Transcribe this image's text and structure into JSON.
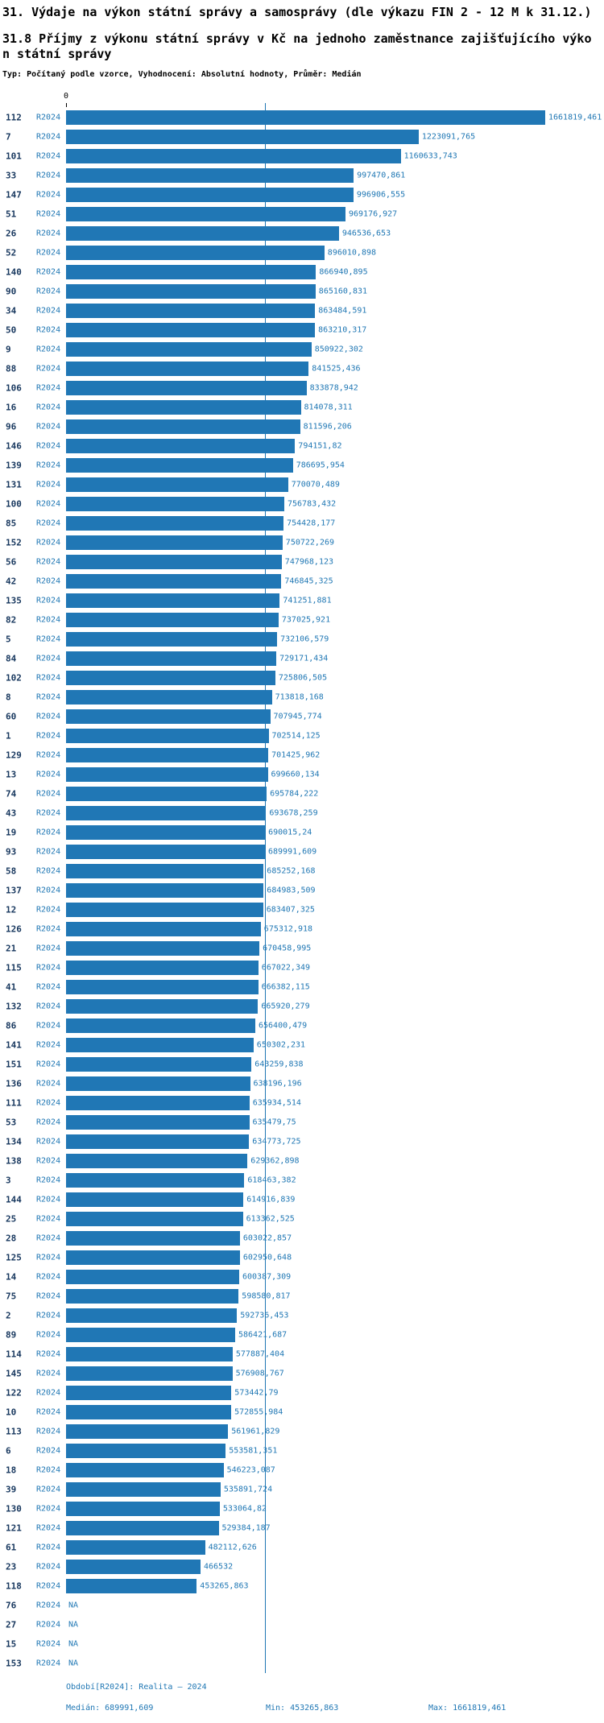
{
  "header": {
    "title1": "31. Výdaje na výkon státní správy a samosprávy (dle výkazu FIN 2 - 12 M k 31.12.)",
    "title2": "31.8 Příjmy z výkonu státní správy v Kč na jednoho zaměstnance zajišťujícího výkon státní správy",
    "subtitle": "Typ: Počítaný podle vzorce, Vyhodnocení: Absolutní hodnoty, Průměr: Medián"
  },
  "axis": {
    "zero_label": "0"
  },
  "colors": {
    "bar": "#2077b5",
    "value_text": "#1f77b4",
    "row_id_text": "#17375e",
    "median_line": "#1f77b4"
  },
  "footer": {
    "period": "Období[R2024]: Realita — 2024",
    "median": "Medián: 689991,609",
    "min": "Min: 453265,863",
    "max": "Max: 1661819,461"
  },
  "chart_data": {
    "type": "bar",
    "orientation": "horizontal",
    "series_name": "R2024",
    "xlim": [
      0,
      1661819.461
    ],
    "median": 689991.609,
    "min": 453265.863,
    "max_value": 1661819.461,
    "rows": [
      {
        "id": "112",
        "label": "1661819,461",
        "value": 1661819.461
      },
      {
        "id": "7",
        "label": "1223091,765",
        "value": 1223091.765
      },
      {
        "id": "101",
        "label": "1160633,743",
        "value": 1160633.743
      },
      {
        "id": "33",
        "label": "997470,861",
        "value": 997470.861
      },
      {
        "id": "147",
        "label": "996906,555",
        "value": 996906.555
      },
      {
        "id": "51",
        "label": "969176,927",
        "value": 969176.927
      },
      {
        "id": "26",
        "label": "946536,653",
        "value": 946536.653
      },
      {
        "id": "52",
        "label": "896010,898",
        "value": 896010.898
      },
      {
        "id": "140",
        "label": "866940,895",
        "value": 866940.895
      },
      {
        "id": "90",
        "label": "865160,831",
        "value": 865160.831
      },
      {
        "id": "34",
        "label": "863484,591",
        "value": 863484.591
      },
      {
        "id": "50",
        "label": "863210,317",
        "value": 863210.317
      },
      {
        "id": "9",
        "label": "850922,302",
        "value": 850922.302
      },
      {
        "id": "88",
        "label": "841525,436",
        "value": 841525.436
      },
      {
        "id": "106",
        "label": "833878,942",
        "value": 833878.942
      },
      {
        "id": "16",
        "label": "814078,311",
        "value": 814078.311
      },
      {
        "id": "96",
        "label": "811596,206",
        "value": 811596.206
      },
      {
        "id": "146",
        "label": "794151,82",
        "value": 794151.82
      },
      {
        "id": "139",
        "label": "786695,954",
        "value": 786695.954
      },
      {
        "id": "131",
        "label": "770070,489",
        "value": 770070.489
      },
      {
        "id": "100",
        "label": "756783,432",
        "value": 756783.432
      },
      {
        "id": "85",
        "label": "754428,177",
        "value": 754428.177
      },
      {
        "id": "152",
        "label": "750722,269",
        "value": 750722.269
      },
      {
        "id": "56",
        "label": "747968,123",
        "value": 747968.123
      },
      {
        "id": "42",
        "label": "746845,325",
        "value": 746845.325
      },
      {
        "id": "135",
        "label": "741251,881",
        "value": 741251.881
      },
      {
        "id": "82",
        "label": "737025,921",
        "value": 737025.921
      },
      {
        "id": "5",
        "label": "732106,579",
        "value": 732106.579
      },
      {
        "id": "84",
        "label": "729171,434",
        "value": 729171.434
      },
      {
        "id": "102",
        "label": "725806,505",
        "value": 725806.505
      },
      {
        "id": "8",
        "label": "713818,168",
        "value": 713818.168
      },
      {
        "id": "60",
        "label": "707945,774",
        "value": 707945.774
      },
      {
        "id": "1",
        "label": "702514,125",
        "value": 702514.125
      },
      {
        "id": "129",
        "label": "701425,962",
        "value": 701425.962
      },
      {
        "id": "13",
        "label": "699660,134",
        "value": 699660.134
      },
      {
        "id": "74",
        "label": "695784,222",
        "value": 695784.222
      },
      {
        "id": "43",
        "label": "693678,259",
        "value": 693678.259
      },
      {
        "id": "19",
        "label": "690015,24",
        "value": 690015.24
      },
      {
        "id": "93",
        "label": "689991,609",
        "value": 689991.609
      },
      {
        "id": "58",
        "label": "685252,168",
        "value": 685252.168
      },
      {
        "id": "137",
        "label": "684983,509",
        "value": 684983.509
      },
      {
        "id": "12",
        "label": "683407,325",
        "value": 683407.325
      },
      {
        "id": "126",
        "label": "675312,918",
        "value": 675312.918
      },
      {
        "id": "21",
        "label": "670458,995",
        "value": 670458.995
      },
      {
        "id": "115",
        "label": "667022,349",
        "value": 667022.349
      },
      {
        "id": "41",
        "label": "666382,115",
        "value": 666382.115
      },
      {
        "id": "132",
        "label": "665920,279",
        "value": 665920.279
      },
      {
        "id": "86",
        "label": "656400,479",
        "value": 656400.479
      },
      {
        "id": "141",
        "label": "650302,231",
        "value": 650302.231
      },
      {
        "id": "151",
        "label": "643259,838",
        "value": 643259.838
      },
      {
        "id": "136",
        "label": "638196,196",
        "value": 638196.196
      },
      {
        "id": "111",
        "label": "635934,514",
        "value": 635934.514
      },
      {
        "id": "53",
        "label": "635479,75",
        "value": 635479.75
      },
      {
        "id": "134",
        "label": "634773,725",
        "value": 634773.725
      },
      {
        "id": "138",
        "label": "629362,898",
        "value": 629362.898
      },
      {
        "id": "3",
        "label": "618463,382",
        "value": 618463.382
      },
      {
        "id": "144",
        "label": "614916,839",
        "value": 614916.839
      },
      {
        "id": "25",
        "label": "613362,525",
        "value": 613362.525
      },
      {
        "id": "28",
        "label": "603022,857",
        "value": 603022.857
      },
      {
        "id": "125",
        "label": "602950,648",
        "value": 602950.648
      },
      {
        "id": "14",
        "label": "600387,309",
        "value": 600387.309
      },
      {
        "id": "75",
        "label": "598580,817",
        "value": 598580.817
      },
      {
        "id": "2",
        "label": "592736,453",
        "value": 592736.453
      },
      {
        "id": "89",
        "label": "586421,687",
        "value": 586421.687
      },
      {
        "id": "114",
        "label": "577887,404",
        "value": 577887.404
      },
      {
        "id": "145",
        "label": "576908,767",
        "value": 576908.767
      },
      {
        "id": "122",
        "label": "573442,79",
        "value": 573442.79
      },
      {
        "id": "10",
        "label": "572855,984",
        "value": 572855.984
      },
      {
        "id": "113",
        "label": "561961,829",
        "value": 561961.829
      },
      {
        "id": "6",
        "label": "553581,351",
        "value": 553581.351
      },
      {
        "id": "18",
        "label": "546223,087",
        "value": 546223.087
      },
      {
        "id": "39",
        "label": "535891,724",
        "value": 535891.724
      },
      {
        "id": "130",
        "label": "533064,82",
        "value": 533064.82
      },
      {
        "id": "121",
        "label": "529384,187",
        "value": 529384.187
      },
      {
        "id": "61",
        "label": "482112,626",
        "value": 482112.626
      },
      {
        "id": "23",
        "label": "466532",
        "value": 466532
      },
      {
        "id": "118",
        "label": "453265,863",
        "value": 453265.863
      },
      {
        "id": "76",
        "label": "NA",
        "value": null
      },
      {
        "id": "27",
        "label": "NA",
        "value": null
      },
      {
        "id": "15",
        "label": "NA",
        "value": null
      },
      {
        "id": "153",
        "label": "NA",
        "value": null
      }
    ]
  }
}
